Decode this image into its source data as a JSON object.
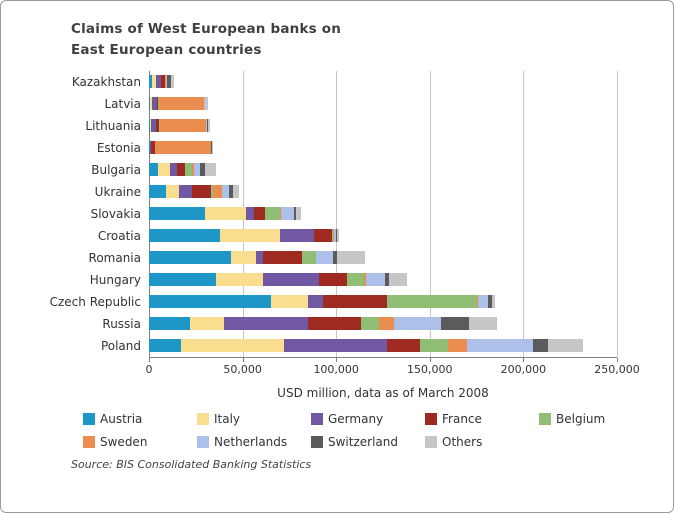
{
  "chart_data": {
    "type": "bar",
    "orientation": "horizontal",
    "stacked": true,
    "title_lines": [
      "Claims of West European banks on",
      "East European countries"
    ],
    "xlabel": "USD million, data as of March 2008",
    "source": "Source: BIS Consolidated Banking Statistics",
    "xlim": [
      0,
      250000
    ],
    "xticks": [
      0,
      50000,
      100000,
      150000,
      200000,
      250000
    ],
    "xtick_labels": [
      "0",
      "50,000",
      "100,000",
      "150,000",
      "200,000",
      "250,000"
    ],
    "grid": true,
    "legend_position": "bottom",
    "categories": [
      "Kazakhstan",
      "Latvia",
      "Lithuania",
      "Estonia",
      "Bulgaria",
      "Ukraine",
      "Slovakia",
      "Croatia",
      "Romania",
      "Hungary",
      "Czech Republic",
      "Russia",
      "Poland"
    ],
    "series": [
      {
        "name": "Austria",
        "color": "#1E96C8",
        "values": [
          1500,
          500,
          500,
          300,
          5000,
          9000,
          30000,
          38000,
          44000,
          36000,
          65000,
          22000,
          17000
        ]
      },
      {
        "name": "Italy",
        "color": "#F9DE8F",
        "values": [
          2000,
          1000,
          500,
          200,
          6000,
          7000,
          22000,
          32000,
          13000,
          25000,
          20000,
          18000,
          55000
        ]
      },
      {
        "name": "Germany",
        "color": "#7059A2",
        "values": [
          3000,
          3000,
          3000,
          500,
          4000,
          7000,
          4000,
          18000,
          4000,
          30000,
          8000,
          45000,
          55000
        ]
      },
      {
        "name": "France",
        "color": "#9E2A21",
        "values": [
          2000,
          500,
          1500,
          2000,
          4000,
          10000,
          6000,
          10000,
          21000,
          15000,
          34000,
          28000,
          18000
        ]
      },
      {
        "name": "Belgium",
        "color": "#8FBE74",
        "values": [
          300,
          200,
          200,
          100,
          4000,
          1000,
          8000,
          500,
          7000,
          9000,
          48000,
          10000,
          15000
        ]
      },
      {
        "name": "Sweden",
        "color": "#EA8D4F",
        "values": [
          500,
          24000,
          25000,
          30000,
          1000,
          5000,
          500,
          300,
          500,
          1000,
          1000,
          8000,
          10000
        ]
      },
      {
        "name": "Netherlands",
        "color": "#ACC0EA",
        "values": [
          500,
          500,
          500,
          200,
          3000,
          4000,
          7000,
          1000,
          9000,
          10000,
          5000,
          25000,
          35000
        ]
      },
      {
        "name": "Switzerland",
        "color": "#5B5B5B",
        "values": [
          2000,
          300,
          300,
          200,
          3000,
          2000,
          1000,
          500,
          2000,
          2000,
          2000,
          15000,
          8000
        ]
      },
      {
        "name": "Others",
        "color": "#C6C6C6",
        "values": [
          1500,
          1500,
          1000,
          500,
          6000,
          3000,
          2500,
          1500,
          15000,
          10000,
          2000,
          15000,
          19000
        ]
      }
    ],
    "legend_rows": [
      [
        "Austria",
        "Italy",
        "Germany",
        "France",
        "Belgium"
      ],
      [
        "Sweden",
        "Netherlands",
        "Switzerland",
        "Others"
      ]
    ]
  }
}
